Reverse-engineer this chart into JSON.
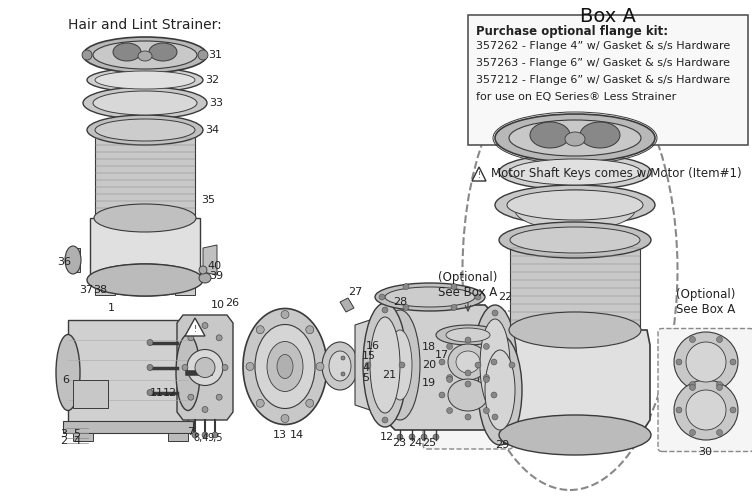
{
  "figsize": [
    7.52,
    5.0
  ],
  "dpi": 100,
  "bg_color": "#ffffff",
  "hair_lint_label": "Hair and Lint Strainer:",
  "box_a_title": "Box A",
  "box_a_lines": [
    "Purchase optional flange kit:",
    "357262 - Flange 4” w/ Gasket & s/s Hardware",
    "357263 - Flange 6” w/ Gasket & s/s Hardware",
    "357212 - Flange 6” w/ Gasket & s/s Hardware",
    "for use on EQ Series® Less Strainer"
  ],
  "optional_text": "(Optional)\nSee Box A",
  "warning_line": "Motor Shaft Keys comes w/Motor (Item#1)"
}
